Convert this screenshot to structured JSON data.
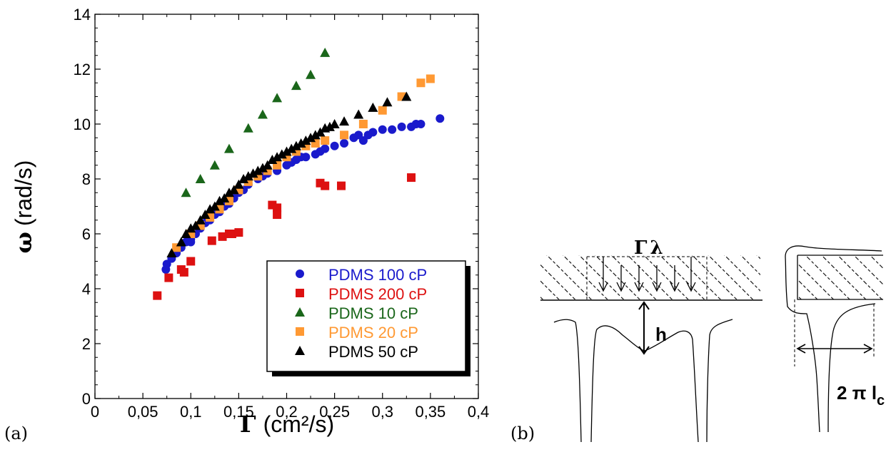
{
  "panel_a_label": "(a)",
  "panel_b_label": "(b)",
  "chart_data": {
    "type": "scatter",
    "xlabel_symbol": "Γ",
    "xlabel_units": "(cm²/s)",
    "ylabel_symbol": "ω",
    "ylabel_units": "(rad/s)",
    "xlim": [
      0,
      0.4
    ],
    "ylim": [
      0,
      14
    ],
    "x_ticks": [
      0,
      0.05,
      0.1,
      0.15,
      0.2,
      0.25,
      0.3,
      0.35,
      0.4
    ],
    "x_tick_labels": [
      "0",
      "0,05",
      "0,1",
      "0,15",
      "0,2",
      "0,25",
      "0,3",
      "0,35",
      "0,4"
    ],
    "y_ticks": [
      0,
      2,
      4,
      6,
      8,
      10,
      12,
      14
    ],
    "y_tick_labels": [
      "0",
      "2",
      "4",
      "6",
      "8",
      "10",
      "12",
      "14"
    ],
    "grid": false,
    "legend_position": "lower-right",
    "series": [
      {
        "name": "PDMS 100 cP",
        "marker": "circle",
        "color": "#1a1acc",
        "x": [
          0.074,
          0.075,
          0.08,
          0.085,
          0.09,
          0.095,
          0.1,
          0.1,
          0.105,
          0.11,
          0.115,
          0.12,
          0.125,
          0.13,
          0.135,
          0.14,
          0.145,
          0.15,
          0.155,
          0.16,
          0.17,
          0.175,
          0.18,
          0.19,
          0.2,
          0.205,
          0.21,
          0.215,
          0.22,
          0.23,
          0.235,
          0.24,
          0.25,
          0.26,
          0.27,
          0.275,
          0.28,
          0.285,
          0.29,
          0.3,
          0.31,
          0.32,
          0.33,
          0.335,
          0.34,
          0.36
        ],
        "y": [
          4.7,
          4.9,
          5.1,
          5.3,
          5.5,
          5.7,
          5.7,
          5.8,
          6.0,
          6.2,
          6.4,
          6.5,
          6.7,
          6.8,
          7.0,
          7.1,
          7.3,
          7.5,
          7.6,
          7.8,
          8.0,
          8.1,
          8.2,
          8.3,
          8.5,
          8.6,
          8.7,
          8.8,
          8.8,
          8.9,
          9.0,
          9.1,
          9.2,
          9.3,
          9.5,
          9.6,
          9.4,
          9.6,
          9.7,
          9.8,
          9.8,
          9.9,
          9.9,
          10.0,
          10.0,
          10.2
        ]
      },
      {
        "name": "PDMS 200 cP",
        "marker": "square",
        "color": "#dd1111",
        "x": [
          0.065,
          0.077,
          0.09,
          0.093,
          0.1,
          0.122,
          0.133,
          0.14,
          0.143,
          0.15,
          0.185,
          0.19,
          0.19,
          0.235,
          0.24,
          0.257,
          0.33
        ],
        "y": [
          3.75,
          4.4,
          4.7,
          4.6,
          5.0,
          5.75,
          5.9,
          6.0,
          6.0,
          6.05,
          7.05,
          6.95,
          6.7,
          7.85,
          7.75,
          7.75,
          8.05
        ]
      },
      {
        "name": "PDMS 10 cP",
        "marker": "triangle",
        "color": "#1a661a",
        "x": [
          0.095,
          0.11,
          0.125,
          0.14,
          0.16,
          0.175,
          0.19,
          0.21,
          0.225,
          0.24
        ],
        "y": [
          7.5,
          8.0,
          8.5,
          9.1,
          9.85,
          10.35,
          10.95,
          11.4,
          11.8,
          12.6
        ]
      },
      {
        "name": "PDMS 20 cP",
        "marker": "square",
        "color": "#ff9933",
        "x": [
          0.085,
          0.1,
          0.11,
          0.12,
          0.13,
          0.14,
          0.15,
          0.16,
          0.17,
          0.18,
          0.19,
          0.2,
          0.21,
          0.22,
          0.23,
          0.24,
          0.26,
          0.28,
          0.3,
          0.32,
          0.34,
          0.35
        ],
        "y": [
          5.5,
          6.0,
          6.3,
          6.6,
          6.9,
          7.2,
          7.6,
          7.9,
          8.1,
          8.3,
          8.5,
          8.8,
          9.0,
          9.2,
          9.3,
          9.4,
          9.6,
          10.0,
          10.5,
          11.0,
          11.5,
          11.65
        ]
      },
      {
        "name": "PDMS 50 cP",
        "marker": "triangle",
        "color": "#000000",
        "x": [
          0.08,
          0.09,
          0.095,
          0.1,
          0.105,
          0.11,
          0.115,
          0.12,
          0.125,
          0.13,
          0.135,
          0.14,
          0.145,
          0.15,
          0.155,
          0.16,
          0.165,
          0.17,
          0.175,
          0.18,
          0.185,
          0.19,
          0.195,
          0.2,
          0.205,
          0.21,
          0.215,
          0.22,
          0.225,
          0.23,
          0.235,
          0.24,
          0.245,
          0.25,
          0.26,
          0.275,
          0.29,
          0.305,
          0.325
        ],
        "y": [
          5.3,
          5.7,
          6.0,
          6.2,
          6.3,
          6.5,
          6.7,
          6.9,
          7.0,
          7.2,
          7.3,
          7.5,
          7.6,
          7.8,
          8.0,
          8.1,
          8.2,
          8.3,
          8.4,
          8.5,
          8.7,
          8.8,
          8.9,
          9.0,
          9.1,
          9.2,
          9.3,
          9.4,
          9.5,
          9.6,
          9.7,
          9.85,
          9.9,
          10.0,
          10.1,
          10.35,
          10.6,
          10.8,
          11.0
        ]
      }
    ]
  },
  "diagram": {
    "flux_label_gamma": "Γ",
    "flux_label_lambda": "λ",
    "gap_label": "h",
    "capillary_label_2pi": "2 π l",
    "capillary_label_sub": "c"
  }
}
